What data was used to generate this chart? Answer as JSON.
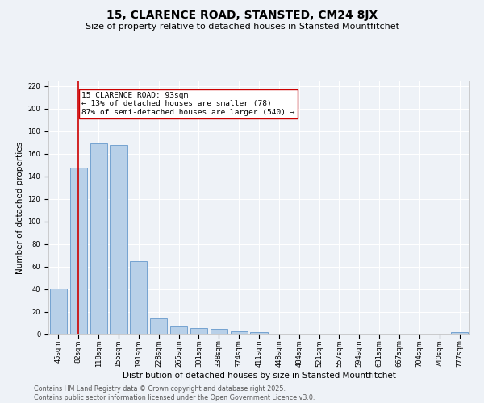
{
  "title": "15, CLARENCE ROAD, STANSTED, CM24 8JX",
  "subtitle": "Size of property relative to detached houses in Stansted Mountfitchet",
  "xlabel": "Distribution of detached houses by size in Stansted Mountfitchet",
  "ylabel": "Number of detached properties",
  "categories": [
    "45sqm",
    "82sqm",
    "118sqm",
    "155sqm",
    "191sqm",
    "228sqm",
    "265sqm",
    "301sqm",
    "338sqm",
    "374sqm",
    "411sqm",
    "448sqm",
    "484sqm",
    "521sqm",
    "557sqm",
    "594sqm",
    "631sqm",
    "667sqm",
    "704sqm",
    "740sqm",
    "777sqm"
  ],
  "values": [
    41,
    148,
    169,
    168,
    65,
    14,
    7,
    6,
    5,
    3,
    2,
    0,
    0,
    0,
    0,
    0,
    0,
    0,
    0,
    0,
    2
  ],
  "bar_color": "#b8d0e8",
  "bar_edge_color": "#6699cc",
  "vline_x": 1,
  "vline_color": "#cc0000",
  "annotation_text": "15 CLARENCE ROAD: 93sqm\n← 13% of detached houses are smaller (78)\n87% of semi-detached houses are larger (540) →",
  "annotation_box_color": "#ffffff",
  "annotation_box_edge_color": "#cc0000",
  "ylim": [
    0,
    225
  ],
  "yticks": [
    0,
    20,
    40,
    60,
    80,
    100,
    120,
    140,
    160,
    180,
    200,
    220
  ],
  "footer": "Contains HM Land Registry data © Crown copyright and database right 2025.\nContains public sector information licensed under the Open Government Licence v3.0.",
  "background_color": "#eef2f7",
  "plot_background_color": "#eef2f7",
  "grid_color": "#ffffff",
  "title_fontsize": 10,
  "subtitle_fontsize": 8,
  "annotation_fontsize": 6.8,
  "footer_fontsize": 5.8,
  "tick_fontsize": 6.0,
  "ylabel_fontsize": 7.5,
  "xlabel_fontsize": 7.5
}
